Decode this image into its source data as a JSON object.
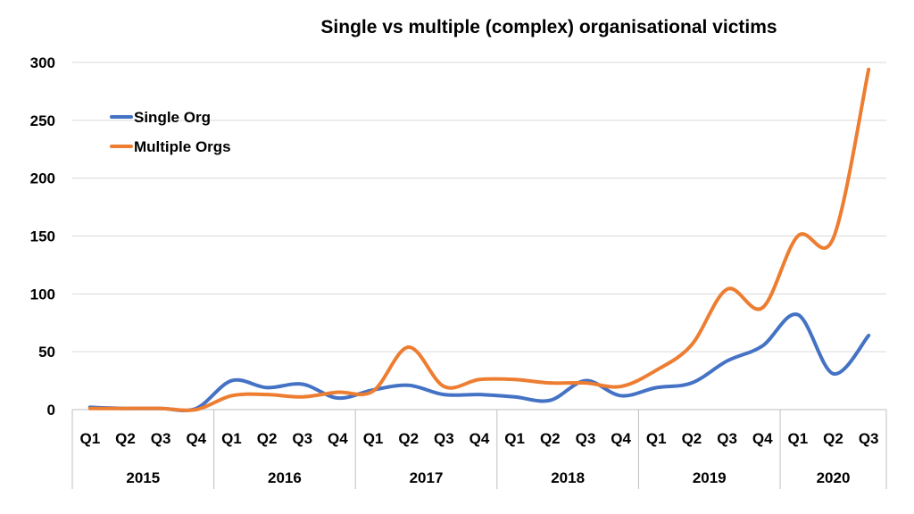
{
  "chart_data": {
    "type": "line",
    "title": "Single vs multiple (complex) organisational victims",
    "xlabel": "",
    "ylabel": "",
    "ylim": [
      0,
      300
    ],
    "yticks": [
      0,
      50,
      100,
      150,
      200,
      250,
      300
    ],
    "categories": [
      "Q1",
      "Q2",
      "Q3",
      "Q4",
      "Q1",
      "Q2",
      "Q3",
      "Q4",
      "Q1",
      "Q2",
      "Q3",
      "Q4",
      "Q1",
      "Q2",
      "Q3",
      "Q4",
      "Q1",
      "Q2",
      "Q3",
      "Q4",
      "Q1",
      "Q2",
      "Q3"
    ],
    "years": [
      {
        "label": "2015",
        "count": 4
      },
      {
        "label": "2016",
        "count": 4
      },
      {
        "label": "2017",
        "count": 4
      },
      {
        "label": "2018",
        "count": 4
      },
      {
        "label": "2019",
        "count": 4
      },
      {
        "label": "2020",
        "count": 3
      }
    ],
    "series": [
      {
        "name": "Single Org",
        "color": "#4472C4",
        "values": [
          2,
          1,
          1,
          1,
          25,
          19,
          22,
          10,
          17,
          21,
          13,
          13,
          11,
          8,
          25,
          12,
          19,
          23,
          42,
          55,
          82,
          31,
          64
        ]
      },
      {
        "name": "Multiple Orgs",
        "color": "#ED7D31",
        "values": [
          1,
          1,
          1,
          0,
          12,
          13,
          11,
          15,
          16,
          54,
          20,
          26,
          26,
          23,
          23,
          20,
          34,
          56,
          104,
          88,
          150,
          148,
          294
        ]
      }
    ],
    "legend_position": "top-left",
    "grid": true
  }
}
